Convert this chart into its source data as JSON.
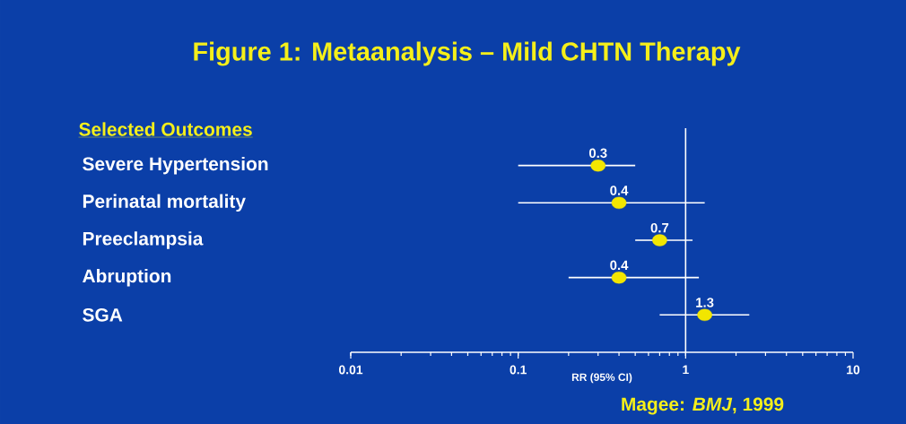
{
  "chart_data": {
    "type": "scatter",
    "orientation": "horizontal",
    "title": "Figure 1: Metaanalysis – Mild CHTN Therapy",
    "ylabel": "Selected Outcomes",
    "xlabel": "RR (95% CI)",
    "annotations": [
      "Magee: *BMJ*, 1999"
    ],
    "categories": [
      "Severe Hypertension",
      "Perinatal mortality",
      "Preeclampsia",
      "Abruption",
      "SGA"
    ],
    "values": [
      0.3,
      0.4,
      0.7,
      0.4,
      1.3
    ],
    "errors": [
      [
        0.1,
        0.5
      ],
      [
        0.1,
        1.3
      ],
      [
        0.5,
        1.1
      ],
      [
        0.2,
        1.2
      ],
      [
        0.7,
        2.4
      ]
    ],
    "color": "#f2e600",
    "data_labels": true,
    "log": "x",
    "xlim": [
      0.01,
      10
    ],
    "xticks": [
      0.01,
      0.1,
      1,
      10
    ],
    "ref_lines": [
      {
        "axis": "x",
        "value": 1,
        "color": "#ffffff"
      }
    ]
  }
}
